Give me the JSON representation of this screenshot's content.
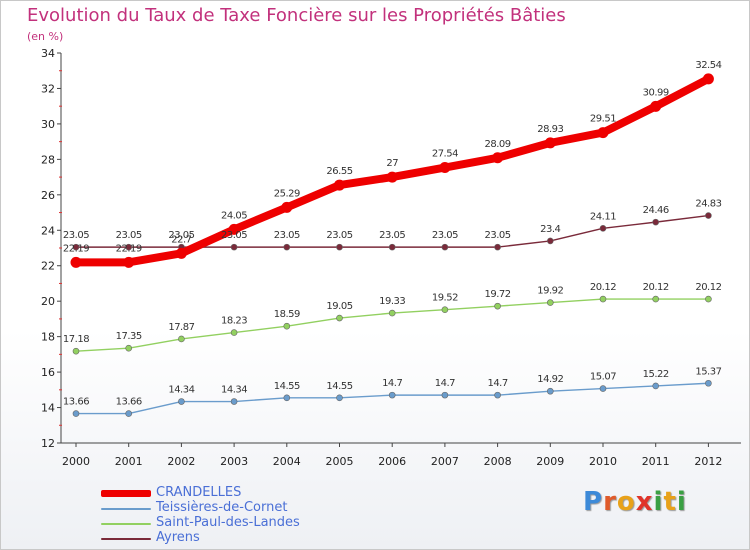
{
  "title": "Evolution du Taux de Taxe Foncière sur les Propriétés Bâties",
  "unit_label": "(en %)",
  "logo_text": "Proxiti",
  "chart_data": {
    "type": "line",
    "title": "Evolution du Taux de Taxe Foncière sur les Propriétés Bâties",
    "ylabel": "(en %)",
    "xlabel": "",
    "x": [
      "2000",
      "2001",
      "2002",
      "2003",
      "2004",
      "2005",
      "2006",
      "2007",
      "2008",
      "2009",
      "2010",
      "2011",
      "2012"
    ],
    "ylim": [
      12,
      34
    ],
    "yticks": [
      "12",
      "14",
      "16",
      "18",
      "20",
      "22",
      "24",
      "26",
      "28",
      "30",
      "32",
      "34"
    ],
    "grid": false,
    "legend": "bottom-left",
    "series": [
      {
        "name": "CRANDELLES",
        "color": "#ee0000",
        "values": [
          22.19,
          22.19,
          22.7,
          24.05,
          25.29,
          26.55,
          27,
          27.54,
          28.09,
          28.93,
          29.51,
          30.99,
          32.54
        ],
        "labels": [
          "22.19",
          "22.19",
          "22.7",
          "24.05",
          "25.29",
          "26.55",
          "27",
          "27.54",
          "28.09",
          "28.93",
          "29.51",
          "30.99",
          "32.54"
        ]
      },
      {
        "name": "Teissières-de-Cornet",
        "color": "#6a9ccc",
        "values": [
          13.66,
          13.66,
          14.34,
          14.34,
          14.55,
          14.55,
          14.7,
          14.7,
          14.7,
          14.92,
          15.07,
          15.22,
          15.37
        ],
        "labels": [
          "13.66",
          "13.66",
          "14.34",
          "14.34",
          "14.55",
          "14.55",
          "14.7",
          "14.7",
          "14.7",
          "14.92",
          "15.07",
          "15.22",
          "15.37"
        ]
      },
      {
        "name": "Saint-Paul-des-Landes",
        "color": "#92d060",
        "values": [
          17.18,
          17.35,
          17.87,
          18.23,
          18.59,
          19.05,
          19.33,
          19.52,
          19.72,
          19.92,
          20.12,
          20.12,
          20.12
        ],
        "labels": [
          "17.18",
          "17.35",
          "17.87",
          "18.23",
          "18.59",
          "19.05",
          "19.33",
          "19.52",
          "19.72",
          "19.92",
          "20.12",
          "20.12",
          "20.12"
        ]
      },
      {
        "name": "Ayrens",
        "color": "#7a2a3a",
        "values": [
          23.05,
          23.05,
          23.05,
          23.05,
          23.05,
          23.05,
          23.05,
          23.05,
          23.05,
          23.4,
          24.11,
          24.46,
          24.83
        ],
        "labels": [
          "23.05",
          "23.05",
          "23.05",
          "23.05",
          "23.05",
          "23.05",
          "23.05",
          "23.05",
          "23.05",
          "23.4",
          "24.11",
          "24.46",
          "24.83"
        ]
      }
    ]
  }
}
